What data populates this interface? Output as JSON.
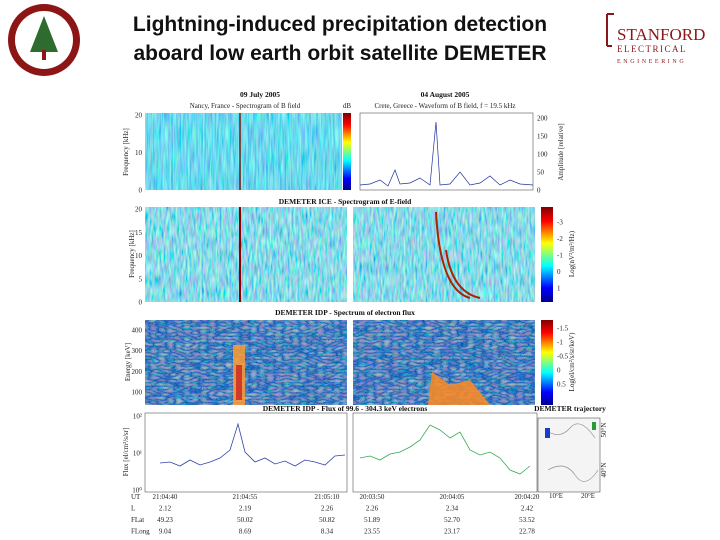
{
  "header": {
    "title": [
      "Lightning-induced precipitation detection",
      "aboard low earth orbit satellite DEMETER"
    ]
  },
  "logo": {
    "name": "STANFORD",
    "dept": "ELECTRICAL",
    "school": "ENGINEERING"
  },
  "figure": {
    "dates": [
      "09 July 2005",
      "04 August 2005"
    ],
    "row1": {
      "left_title": "Nancy, France - Spectrogram of B field",
      "right_title": "Crete, Greece - Waveform of B field, f = 19.5 kHz",
      "unit": "dB",
      "y_label": "Frequency [kHz]",
      "y_ticks": [
        "0",
        "10",
        "20"
      ],
      "y2_label": "Amplitude [relative]",
      "y2_ticks": [
        "0",
        "50",
        "100",
        "150",
        "200"
      ]
    },
    "row2": {
      "title": "DEMETER ICE - Spectrogram of E-field",
      "y_label": "Frequency [kHz]",
      "y_ticks": [
        "0",
        "5",
        "10",
        "15",
        "20"
      ],
      "cbar_label": "Log(nV²/m²/Hz)",
      "cbar_ticks": [
        "1",
        "0",
        "-1",
        "-2",
        "-3"
      ]
    },
    "row3": {
      "title": "DEMETER IDP - Spectrum of electron flux",
      "y_label": "Energy [keV]",
      "y_ticks": [
        "100",
        "200",
        "300",
        "400"
      ],
      "cbar_label": "Log(el/cm²/s/sr/keV)",
      "cbar_ticks": [
        "0.5",
        "0",
        "-0.5",
        "-1",
        "-1.5"
      ]
    },
    "row4": {
      "title": "DEMETER IDP - Flux of 99.6 - 304.3 keV electrons",
      "map_title": "DEMETER trajectory",
      "y_label": "Flux [el/cm²/s/sr]",
      "y_ticks": [
        "10⁰",
        "10¹",
        "10²"
      ],
      "map_lon": [
        "10°E",
        "20°E"
      ],
      "map_lat": [
        "50°N",
        "40°N"
      ]
    },
    "table": {
      "labels": [
        "UT",
        "L",
        "FLat",
        "FLong"
      ],
      "rows": [
        [
          "21:04:40",
          "21:04:55",
          "21:05:10",
          "20:03:50",
          "20:04:05",
          "20:04:20"
        ],
        [
          "2.12",
          "2.19",
          "2.26",
          "2.26",
          "2.34",
          "2.42"
        ],
        [
          "49.23",
          "50.02",
          "50.82",
          "51.89",
          "52.70",
          "53.52"
        ],
        [
          "9.04",
          "8.69",
          "8.34",
          "23.55",
          "23.17",
          "22.78"
        ]
      ]
    }
  }
}
